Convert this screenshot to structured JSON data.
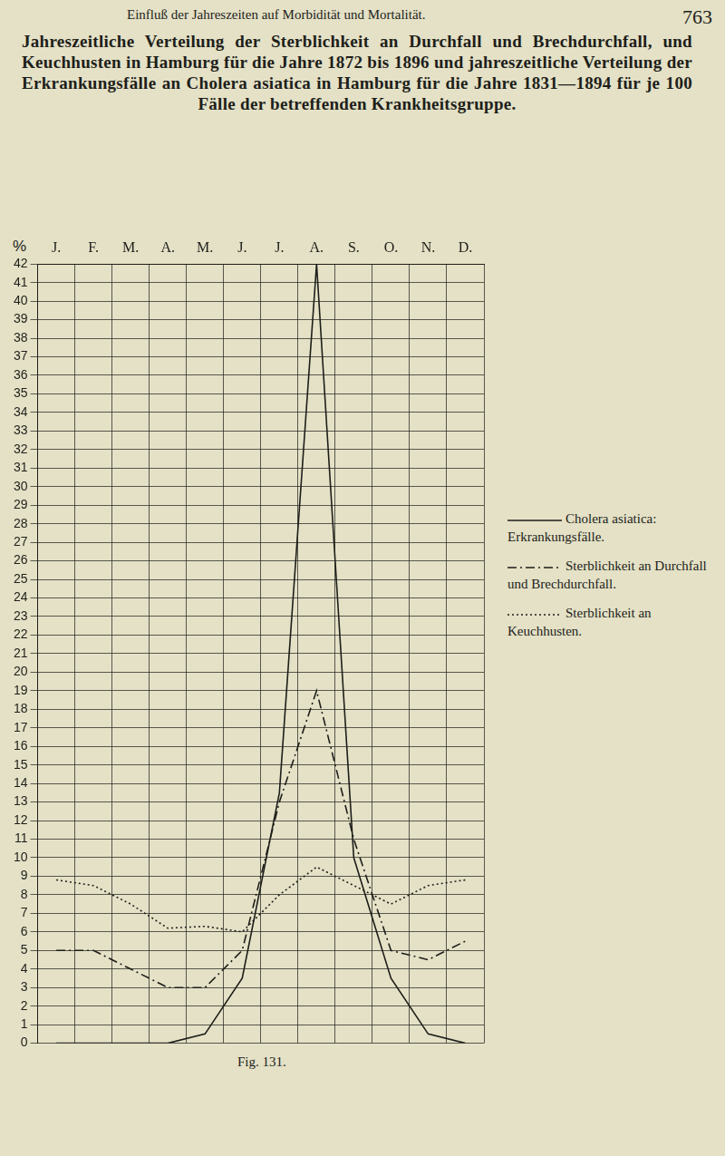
{
  "header": "Einfluß der Jahreszeiten auf Morbidität und Mortalität.",
  "page_number": "763",
  "caption": "Fig. 131.",
  "chart_data": {
    "type": "line",
    "title": "Jahreszeitliche Verteilung der Sterblichkeit an Durchfall und Brechdurchfall, und Keuchhusten in Hamburg für die Jahre 1872 bis 1896 und jahreszeitliche Verteilung der Erkrankungsfälle an Cholera asiatica in Hamburg für die Jahre 1831—1894 für je 100 Fälle der betreffenden Krankheitsgruppe.",
    "ylabel": "%",
    "categories": [
      "J.",
      "F.",
      "M.",
      "A.",
      "M.",
      "J.",
      "J.",
      "A.",
      "S.",
      "O.",
      "N.",
      "D."
    ],
    "series": [
      {
        "name": "Cholera asiatica: Erkrankungsfälle.",
        "color": "#1e1e1a",
        "line_style": "solid",
        "values": [
          0,
          0,
          0,
          0,
          0.5,
          3.5,
          13.5,
          42,
          10,
          3.5,
          0.5,
          0
        ]
      },
      {
        "name": "Sterblichkeit an Durchfall und Brechdurchfall.",
        "color": "#1e1e1a",
        "line_style": "dashdot",
        "values": [
          5,
          5,
          4,
          3,
          3,
          5,
          13,
          19,
          11,
          5,
          4.5,
          5.5
        ]
      },
      {
        "name": "Sterblichkeit an Keuchhusten.",
        "color": "#1e1e1a",
        "line_style": "dotted",
        "values": [
          8.8,
          8.5,
          7.5,
          6.2,
          6.3,
          6,
          8,
          9.5,
          8.5,
          7.5,
          8.5,
          8.8
        ]
      }
    ],
    "ylim": [
      0,
      42
    ],
    "yticks": [
      0,
      1,
      2,
      3,
      4,
      5,
      6,
      7,
      8,
      9,
      10,
      11,
      12,
      13,
      14,
      15,
      16,
      17,
      18,
      19,
      20,
      21,
      22,
      23,
      24,
      25,
      26,
      27,
      28,
      29,
      30,
      31,
      32,
      33,
      34,
      35,
      36,
      37,
      38,
      39,
      40,
      41,
      42
    ],
    "grid": true,
    "legend": "right"
  }
}
